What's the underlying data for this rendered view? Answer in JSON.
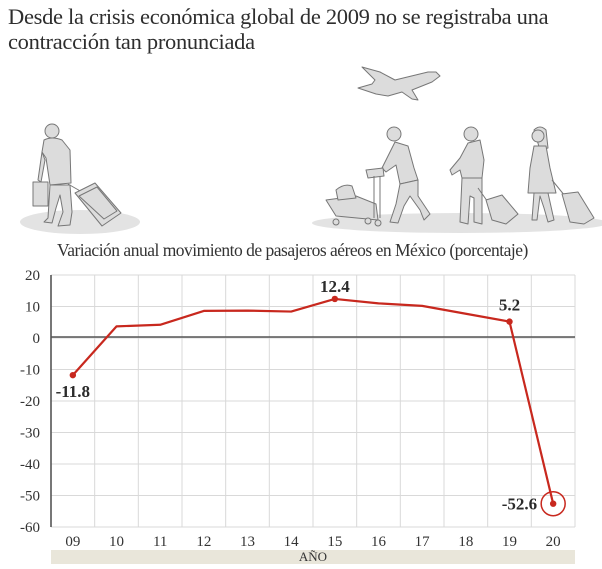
{
  "headline": "Desde la crisis económica global de 2009 no se registraba una contracción tan pronunciada",
  "illustration": {
    "icons": [
      "traveler-with-suitcase-icon",
      "airplane-icon",
      "traveler-with-luggage-cart-icon",
      "traveler-with-rolling-bag-icon",
      "woman-with-rolling-suitcase-icon"
    ]
  },
  "colors": {
    "line": "#c8281e",
    "grid": "#d9d9d9",
    "axis": "#555555",
    "band": "#e9e6da",
    "illustration_fill": "#dcdcdc",
    "illustration_stroke": "#777777"
  },
  "chart_data": {
    "type": "line",
    "title": "Variación anual movimiento de pasajeros aéreos en México (porcentaje)",
    "xlabel": "AÑO",
    "ylabel": "",
    "categories": [
      "09",
      "10",
      "11",
      "12",
      "13",
      "14",
      "15",
      "16",
      "17",
      "18",
      "19",
      "20"
    ],
    "series": [
      {
        "name": "Variación anual (%)",
        "values": [
          -11.8,
          3.7,
          4.2,
          8.6,
          8.7,
          8.4,
          12.4,
          11.0,
          10.2,
          7.7,
          5.2,
          -52.6
        ]
      }
    ],
    "labeled_points": [
      {
        "category": "09",
        "value": -11.8,
        "label": "-11.8"
      },
      {
        "category": "15",
        "value": 12.4,
        "label": "12.4"
      },
      {
        "category": "19",
        "value": 5.2,
        "label": "5.2"
      },
      {
        "category": "20",
        "value": -52.6,
        "label": "-52.6",
        "highlighted": true
      }
    ],
    "yticks": [
      20,
      10,
      0,
      -10,
      -20,
      -30,
      -40,
      -50,
      -60
    ],
    "ytick_labels": [
      "20",
      "10",
      "0",
      "-10",
      "-20",
      "-30",
      "-40",
      "-50",
      "-60"
    ],
    "ylim": [
      -60,
      20
    ],
    "grid": true,
    "legend": "none"
  }
}
